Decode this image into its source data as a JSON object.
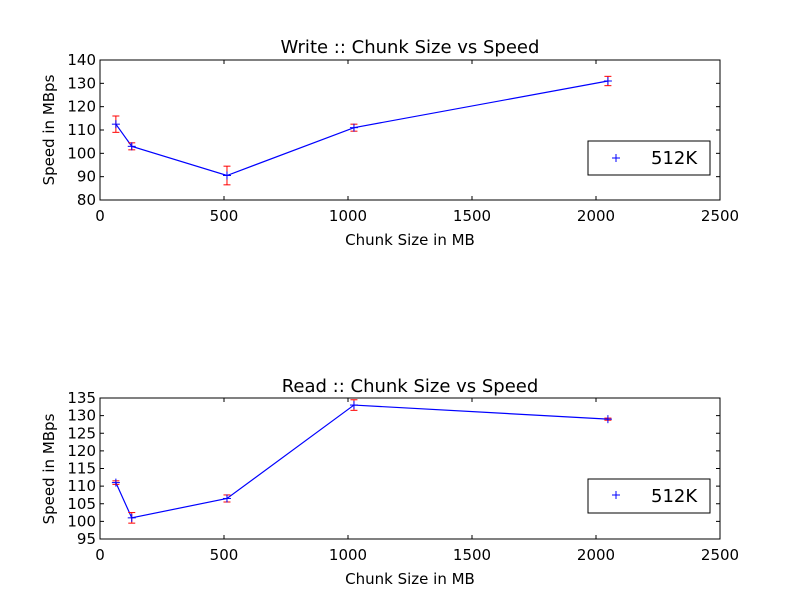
{
  "chart_data": [
    {
      "type": "line",
      "title": "Write :: Chunk Size vs Speed",
      "xlabel": "Chunk Size in MB",
      "ylabel": "Speed in MBps",
      "xlim": [
        0,
        2500
      ],
      "ylim": [
        80,
        140
      ],
      "xticks": [
        0,
        500,
        1000,
        1500,
        2000,
        2500
      ],
      "yticks": [
        80,
        90,
        100,
        110,
        120,
        130,
        140
      ],
      "legend_position": "center-right",
      "series": [
        {
          "name": "512K",
          "x": [
            64,
            128,
            512,
            1024,
            2048
          ],
          "y": [
            112.5,
            103,
            90.5,
            111,
            131
          ],
          "err": [
            3.5,
            1.5,
            4,
            1.5,
            2
          ],
          "color": "#0000ff",
          "err_color": "#ff0000"
        }
      ]
    },
    {
      "type": "line",
      "title": "Read :: Chunk Size vs Speed",
      "xlabel": "Chunk Size in MB",
      "ylabel": "Speed in MBps",
      "xlim": [
        0,
        2500
      ],
      "ylim": [
        95,
        135
      ],
      "xticks": [
        0,
        500,
        1000,
        1500,
        2000,
        2500
      ],
      "yticks": [
        95,
        100,
        105,
        110,
        115,
        120,
        125,
        130,
        135
      ],
      "legend_position": "center-right",
      "series": [
        {
          "name": "512K",
          "x": [
            64,
            128,
            512,
            1024,
            2048
          ],
          "y": [
            111,
            101,
            106.5,
            133,
            129
          ],
          "err": [
            0.5,
            1.5,
            1,
            1.5,
            0.3
          ],
          "color": "#0000ff",
          "err_color": "#ff0000"
        }
      ]
    }
  ]
}
